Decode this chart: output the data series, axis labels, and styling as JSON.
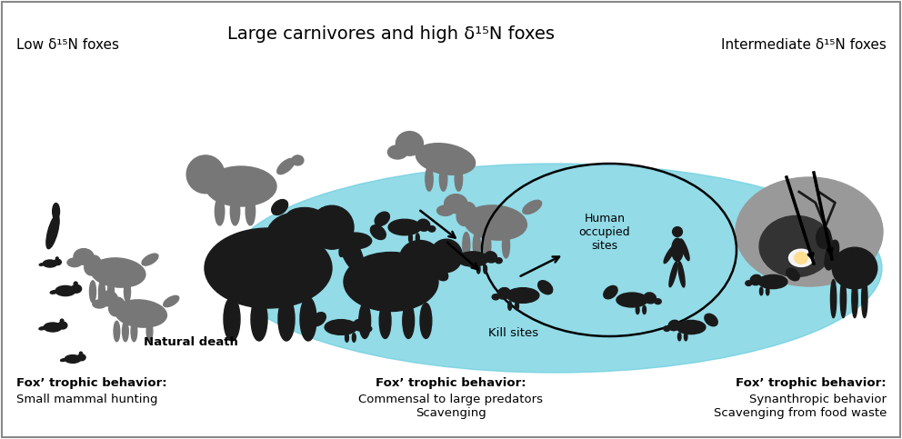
{
  "title_center": "Large carnivores and high δ¹⁵N foxes",
  "title_left": "Low δ¹⁵N foxes",
  "title_right": "Intermediate δ¹⁵N foxes",
  "label_natural_death": "Natural death",
  "label_kill_sites": "Kill sites",
  "label_human_sites": "Human\noccupied\nsites",
  "bottom_left_bold": "Fox’ trophic behavior:",
  "bottom_left_normal": "Small mammal hunting",
  "bottom_center_bold": "Fox’ trophic behavior:",
  "bottom_center_normal": "Commensal to large predators\nScavenging",
  "bottom_right_bold": "Fox’ trophic behavior:",
  "bottom_right_normal": "Synanthropic behavior\nScavenging from food waste",
  "ellipse_color": "#6ecfe0",
  "border_color": "#555555",
  "animal_dark": "#1a1a1a",
  "animal_gray": "#777777",
  "animal_lgray": "#aaaaaa",
  "cave_color": "#999999"
}
